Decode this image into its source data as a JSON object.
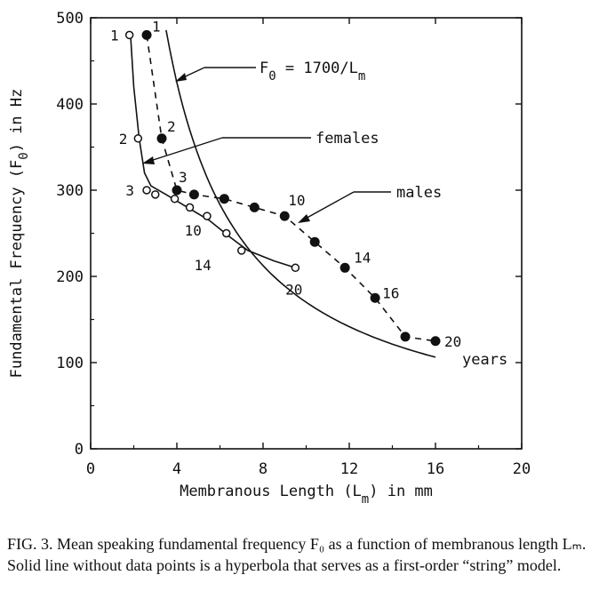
{
  "chart_data": {
    "type": "line",
    "xlabel": "Membranous Length (L",
    "xlabel_sub": "m",
    "xlabel_end": ") in mm",
    "ylabel": "Fundamental Frequency (F",
    "ylabel_sub": "0",
    "ylabel_end": ") in Hz",
    "xlim": [
      0,
      20
    ],
    "ylim": [
      0,
      500
    ],
    "x_ticks": [
      0,
      4,
      8,
      12,
      16,
      20
    ],
    "y_ticks": [
      0,
      100,
      200,
      300,
      400,
      500
    ],
    "x_tick_labels": [
      "0",
      "4",
      "8",
      "12",
      "16",
      "20"
    ],
    "y_tick_labels": [
      "0",
      "100",
      "200",
      "300",
      "400",
      "500"
    ],
    "grid": false,
    "series": [
      {
        "name": "females",
        "marker": "open-circle",
        "line_style": "none",
        "points": [
          {
            "x": 1.8,
            "y": 480
          },
          {
            "x": 2.2,
            "y": 360
          },
          {
            "x": 2.6,
            "y": 300
          },
          {
            "x": 3.0,
            "y": 295
          },
          {
            "x": 3.9,
            "y": 290
          },
          {
            "x": 4.6,
            "y": 280
          },
          {
            "x": 5.4,
            "y": 270
          },
          {
            "x": 6.3,
            "y": 250
          },
          {
            "x": 7.0,
            "y": 230
          },
          {
            "x": 9.5,
            "y": 210
          }
        ],
        "point_labels": [
          {
            "x": 1.8,
            "y": 480,
            "text": "1"
          },
          {
            "x": 2.2,
            "y": 360,
            "text": "2"
          },
          {
            "x": 2.6,
            "y": 300,
            "text": "3"
          },
          {
            "x": 5.4,
            "y": 270,
            "text": "10"
          },
          {
            "x": 7.0,
            "y": 230,
            "text": "14"
          },
          {
            "x": 9.5,
            "y": 210,
            "text": "20"
          }
        ]
      },
      {
        "name": "males",
        "marker": "filled-circle",
        "line_style": "dashed",
        "points": [
          {
            "x": 2.6,
            "y": 480
          },
          {
            "x": 3.3,
            "y": 360
          },
          {
            "x": 4.0,
            "y": 300
          },
          {
            "x": 4.8,
            "y": 295
          },
          {
            "x": 6.2,
            "y": 290
          },
          {
            "x": 7.6,
            "y": 280
          },
          {
            "x": 9.0,
            "y": 270
          },
          {
            "x": 10.4,
            "y": 240
          },
          {
            "x": 11.8,
            "y": 210
          },
          {
            "x": 13.2,
            "y": 175
          },
          {
            "x": 14.6,
            "y": 130
          },
          {
            "x": 16.0,
            "y": 125
          }
        ],
        "point_labels": [
          {
            "x": 2.6,
            "y": 480,
            "text": "1"
          },
          {
            "x": 3.3,
            "y": 360,
            "text": "2"
          },
          {
            "x": 4.0,
            "y": 300,
            "text": "3"
          },
          {
            "x": 9.0,
            "y": 270,
            "text": "10"
          },
          {
            "x": 11.8,
            "y": 210,
            "text": "14"
          },
          {
            "x": 13.2,
            "y": 175,
            "text": "16"
          },
          {
            "x": 16.0,
            "y": 125,
            "text": "20"
          }
        ]
      },
      {
        "name": "hyperbola",
        "formula": "F0 = 1700/Lm",
        "marker": "none",
        "line_style": "solid",
        "x_range": [
          3.5,
          16.0
        ]
      }
    ],
    "curve_left": {
      "line_style": "solid",
      "points": [
        {
          "x": 1.85,
          "y": 480
        },
        {
          "x": 2.0,
          "y": 420
        },
        {
          "x": 2.25,
          "y": 360
        },
        {
          "x": 2.5,
          "y": 320
        },
        {
          "x": 2.8,
          "y": 305
        },
        {
          "x": 3.5,
          "y": 295
        },
        {
          "x": 4.5,
          "y": 280
        },
        {
          "x": 5.5,
          "y": 265
        },
        {
          "x": 6.5,
          "y": 245
        },
        {
          "x": 7.3,
          "y": 230
        },
        {
          "x": 8.5,
          "y": 218
        },
        {
          "x": 9.5,
          "y": 210
        }
      ]
    },
    "annotations": {
      "formula_prefix": "F",
      "formula_sub": "0",
      "formula_mid": " = 1700/L",
      "formula_sub2": "m",
      "females": "females",
      "males": "males",
      "years": "years"
    }
  },
  "caption": {
    "text": "FIG. 3. Mean speaking fundamental frequency F₀ as a function of membranous length Lₘ. Solid line without data points is a hyperbola that serves as a first-order “string” model."
  }
}
